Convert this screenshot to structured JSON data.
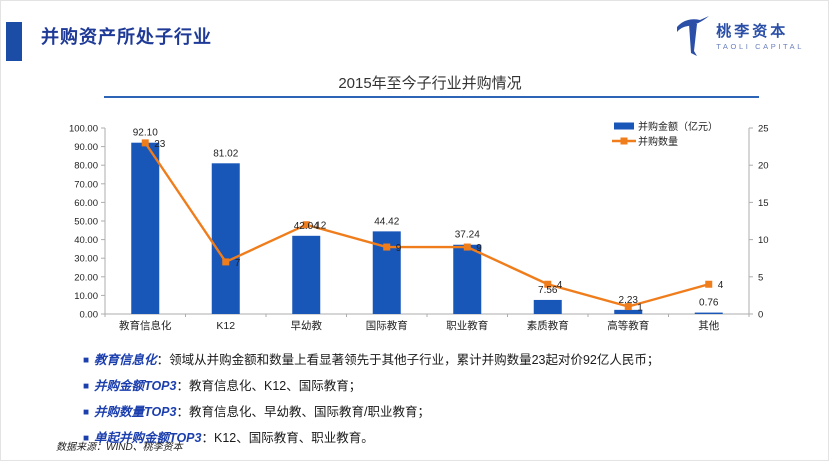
{
  "header": {
    "title": "并购资产所处子行业",
    "logo_cn": "桃李资本",
    "logo_en": "TAOLI CAPITAL"
  },
  "chart_data": {
    "type": "bar",
    "subtype": "combo-bar-line-dual-axis",
    "title": "2015年至今子行业并购情况",
    "categories": [
      "教育信息化",
      "K12",
      "早幼教",
      "国际教育",
      "职业教育",
      "素质教育",
      "高等教育",
      "其他"
    ],
    "series": [
      {
        "name": "并购金额（亿元）",
        "type": "bar",
        "axis": "left",
        "color": "#1856b8",
        "values": [
          92.1,
          81.02,
          42.04,
          44.42,
          37.24,
          7.56,
          2.23,
          0.76
        ]
      },
      {
        "name": "并购数量",
        "type": "line",
        "axis": "right",
        "color": "#f07d1c",
        "values": [
          23,
          7,
          12,
          9,
          9,
          4,
          1,
          4
        ]
      }
    ],
    "left_axis": {
      "min": 0,
      "max": 100,
      "step": 10,
      "decimals": 2
    },
    "right_axis": {
      "min": 0,
      "max": 25,
      "step": 5,
      "decimals": 0
    },
    "legend_position": "top-right",
    "grid": false,
    "axis_color": "#adadad",
    "label_color": "#222222"
  },
  "bullets": [
    {
      "lead": "教育信息化",
      "text": "：领域从并购金额和数量上看显著领先于其他子行业，累计并购数量23起对价92亿人民币；"
    },
    {
      "lead": "并购金额TOP3",
      "text": "：教育信息化、K12、国际教育；"
    },
    {
      "lead": "并购数量TOP3",
      "text": "：教育信息化、早幼教、国际教育/职业教育；"
    },
    {
      "lead": "单起并购金额TOP3",
      "text": "：K12、国际教育、职业教育。"
    }
  ],
  "footer": {
    "source": "数据来源：WIND、桃李资本"
  },
  "colors": {
    "accent_navy": "#1e3a96",
    "accent_square": "#1c4da6",
    "bar_blue": "#1856b8",
    "line_orange": "#f07d1c",
    "title_underline": "#2e64b5"
  }
}
